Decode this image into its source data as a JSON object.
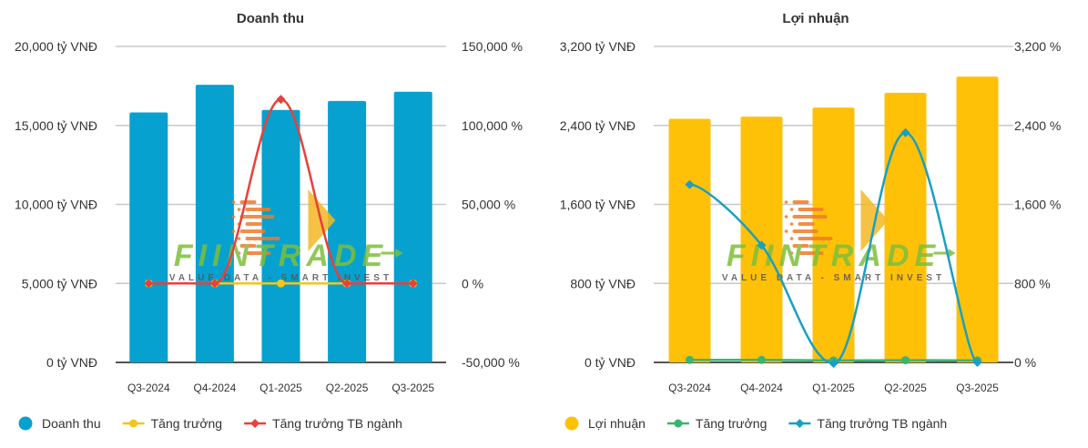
{
  "chart_data": [
    {
      "type": "bar",
      "title": "Doanh thu",
      "categories": [
        "Q3-2024",
        "Q4-2024",
        "Q1-2025",
        "Q2-2025",
        "Q3-2025"
      ],
      "left_axis": {
        "ticks": [
          "20,000 tỷ VNĐ",
          "15,000 tỷ VNĐ",
          "10,000 tỷ VNĐ",
          "5,000 tỷ VNĐ",
          "0 tỷ VNĐ"
        ],
        "ylim": [
          0,
          20000
        ],
        "unit": "tỷ VNĐ"
      },
      "right_axis": {
        "ticks": [
          "150,000 %",
          "100,000 %",
          "50,000 %",
          "0 %",
          "-50,000 %"
        ],
        "ylim": [
          -50000,
          150000
        ],
        "unit": "%"
      },
      "series": [
        {
          "name": "Doanh thu",
          "kind": "bar",
          "axis": "left",
          "color": "#06a1cf",
          "values": [
            15820,
            17570,
            15980,
            16550,
            17130
          ]
        },
        {
          "name": "Tăng trưởng",
          "kind": "line",
          "axis": "right",
          "color": "#f5c518",
          "values": [
            0,
            0,
            0,
            0,
            0
          ]
        },
        {
          "name": "Tăng trưởng TB ngành",
          "kind": "line",
          "axis": "right",
          "color": "#e8403a",
          "values": [
            0,
            0,
            116500,
            0,
            0
          ]
        }
      ],
      "legend": "bottom-left",
      "grid": true
    },
    {
      "type": "bar",
      "title": "Lợi nhuận",
      "categories": [
        "Q3-2024",
        "Q4-2024",
        "Q1-2025",
        "Q2-2025",
        "Q3-2025"
      ],
      "left_axis": {
        "ticks": [
          "3,200 tỷ VNĐ",
          "2,400 tỷ VNĐ",
          "1,600 tỷ VNĐ",
          "800 tỷ VNĐ",
          "0 tỷ VNĐ"
        ],
        "ylim": [
          0,
          3200
        ],
        "unit": "tỷ VNĐ"
      },
      "right_axis": {
        "ticks": [
          "3,200 %",
          "2,400 %",
          "1,600 %",
          "800 %",
          "0 %"
        ],
        "ylim": [
          0,
          3200
        ],
        "unit": "%"
      },
      "series": [
        {
          "name": "Lợi nhuận",
          "kind": "bar",
          "axis": "left",
          "color": "#ffc107",
          "values": [
            2467,
            2489,
            2581,
            2731,
            2894
          ]
        },
        {
          "name": "Tăng trưởng",
          "kind": "line",
          "axis": "right",
          "color": "#3cb371",
          "values": [
            25,
            25,
            20,
            22,
            20
          ]
        },
        {
          "name": "Tăng trưởng TB ngành",
          "kind": "line",
          "axis": "right",
          "color": "#1a9fc2",
          "values": [
            1802,
            1186,
            -10,
            2326,
            0
          ]
        }
      ],
      "legend": "bottom-left",
      "grid": true
    }
  ],
  "watermark": {
    "brand": "FIINTRADE",
    "tagline": "VALUE DATA - SMART INVEST"
  }
}
